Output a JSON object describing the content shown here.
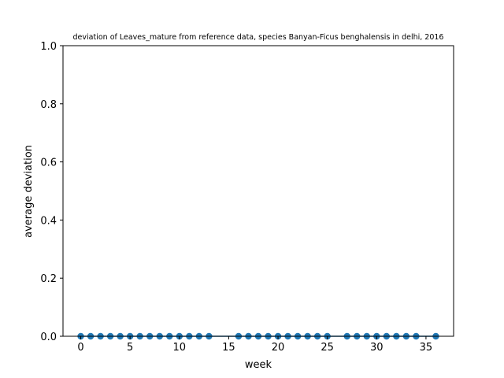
{
  "chart_data": {
    "type": "scatter",
    "title": "deviation of Leaves_mature from reference data, species Banyan-Ficus benghalensis in delhi, 2016",
    "xlabel": "week",
    "ylabel": "average deviation",
    "xlim": [
      -1.8,
      37.8
    ],
    "ylim": [
      0.0,
      1.0
    ],
    "xticks": [
      0,
      5,
      10,
      15,
      20,
      25,
      30,
      35
    ],
    "yticks": [
      0.0,
      0.2,
      0.4,
      0.6,
      0.8,
      1.0
    ],
    "xtick_labels": [
      "0",
      "5",
      "10",
      "15",
      "20",
      "25",
      "30",
      "35"
    ],
    "ytick_labels": [
      "0.0",
      "0.2",
      "0.4",
      "0.6",
      "0.8",
      "1.0"
    ],
    "grid": false,
    "marker_color": "#1f77b4",
    "line_color": "#1f77b4",
    "series": [
      {
        "x": [
          0,
          1,
          2,
          3,
          4,
          5,
          6,
          7,
          8,
          9,
          10,
          11,
          12,
          13,
          16,
          17,
          18,
          19,
          20,
          21,
          22,
          23,
          24,
          25,
          27,
          28,
          29,
          30,
          31,
          32,
          33,
          34,
          36
        ],
        "y": [
          0,
          0,
          0,
          0,
          0,
          0,
          0,
          0,
          0,
          0,
          0,
          0,
          0,
          0,
          0,
          0,
          0,
          0,
          0,
          0,
          0,
          0,
          0,
          0,
          0,
          0,
          0,
          0,
          0,
          0,
          0,
          0,
          0
        ]
      }
    ]
  }
}
